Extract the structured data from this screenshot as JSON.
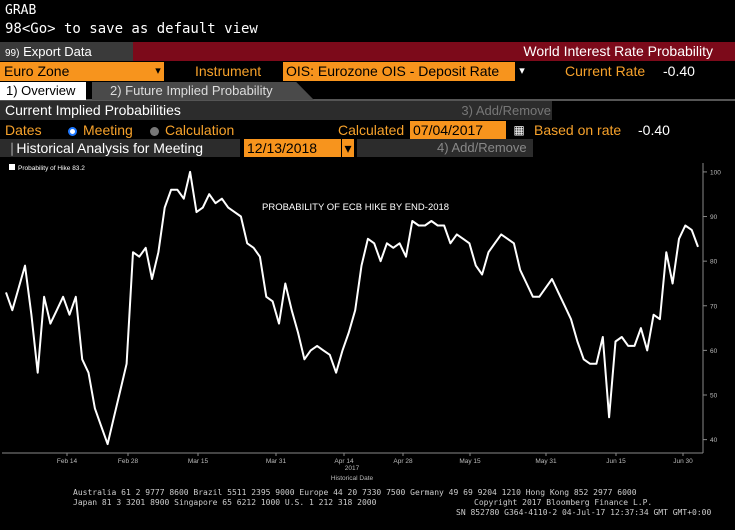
{
  "header": {
    "grab": "GRAB",
    "command": "98<Go> to save as default view"
  },
  "toolbar": {
    "export_number": "99)",
    "export_label": "Export Data",
    "title": "World Interest Rate Probability"
  },
  "controls": {
    "region": "Euro Zone",
    "instrument_label": "Instrument",
    "instrument_value": "OIS: Eurozone OIS - Deposit Rate",
    "current_rate_label": "Current Rate",
    "current_rate_value": "-0.40"
  },
  "tabs": [
    {
      "label": "1) Overview"
    },
    {
      "label": "2) Future Implied Probability"
    }
  ],
  "section": {
    "title": "Current Implied Probabilities",
    "add_remove": "3) Add/Remove"
  },
  "dates": {
    "label": "Dates",
    "option1": "Meeting",
    "option2": "Calculation",
    "calculated_label": "Calculated",
    "calculated_value": "07/04/2017",
    "based_on_label": "Based on rate",
    "based_on_value": "-0.40"
  },
  "historical": {
    "title": "Historical Analysis for Meeting",
    "meeting_date": "12/13/2018",
    "add_remove": "4) Add/Remove"
  },
  "footer": {
    "line1": "Australia 61 2 9777 8600 Brazil 5511 2395 9000 Europe 44 20 7330 7500 Germany 49 69 9204 1210 Hong Kong 852 2977 6000",
    "line2a": "Japan 81 3 3201 8900       Singapore 65 6212 1000       U.S. 1 212 318 2000",
    "line2b": "Copyright 2017 Bloomberg Finance L.P.",
    "line3": "SN 852780 G364-4110-2 04-Jul-17 12:37:34 GMT GMT+0:00"
  },
  "colors": {
    "toolbar_red": "#7c0a1a",
    "orange": "#f7941d",
    "line": "#ffffff"
  },
  "chart_data": {
    "type": "line",
    "title": "PROBABILITY OF ECB HIKE BY END-2018",
    "legend": "Probability of Hike 83.2",
    "xlabel": "Historical Date",
    "year_label": "2017",
    "x_tick_labels": [
      "Feb 14",
      "Feb 28",
      "Mar 15",
      "Mar 31",
      "Apr 14",
      "Apr 28",
      "May 15",
      "May 31",
      "Jun 15",
      "Jun 30"
    ],
    "y_ticks": [
      40,
      50,
      60,
      70,
      80,
      90,
      100
    ],
    "ylim": [
      37,
      102
    ],
    "grid": false,
    "legend_position": "top-left",
    "series": [
      {
        "name": "Probability of Hike",
        "values": [
          73,
          69,
          74,
          79,
          68,
          55,
          72,
          66,
          69,
          72,
          68,
          72,
          58,
          55,
          47,
          43,
          39,
          45,
          51,
          57,
          82,
          81,
          83,
          76,
          82,
          92,
          96,
          96,
          94,
          100,
          91,
          92,
          95,
          93,
          94,
          92,
          91,
          90,
          84,
          83,
          81,
          72,
          71,
          66,
          75,
          69,
          64,
          58,
          60,
          61,
          60,
          59,
          55,
          60,
          64,
          69,
          79,
          85,
          84,
          80,
          84,
          83,
          84,
          81,
          89,
          88,
          88,
          89,
          88,
          88,
          84,
          86,
          85,
          84,
          79,
          77,
          82,
          84,
          86,
          85,
          84,
          78,
          75,
          72,
          72,
          74,
          76,
          73,
          70,
          67,
          62,
          58,
          57,
          57,
          63,
          45,
          62,
          63,
          61,
          61,
          65,
          60,
          68,
          67,
          82,
          75,
          85,
          88,
          87,
          83.2
        ]
      }
    ]
  }
}
